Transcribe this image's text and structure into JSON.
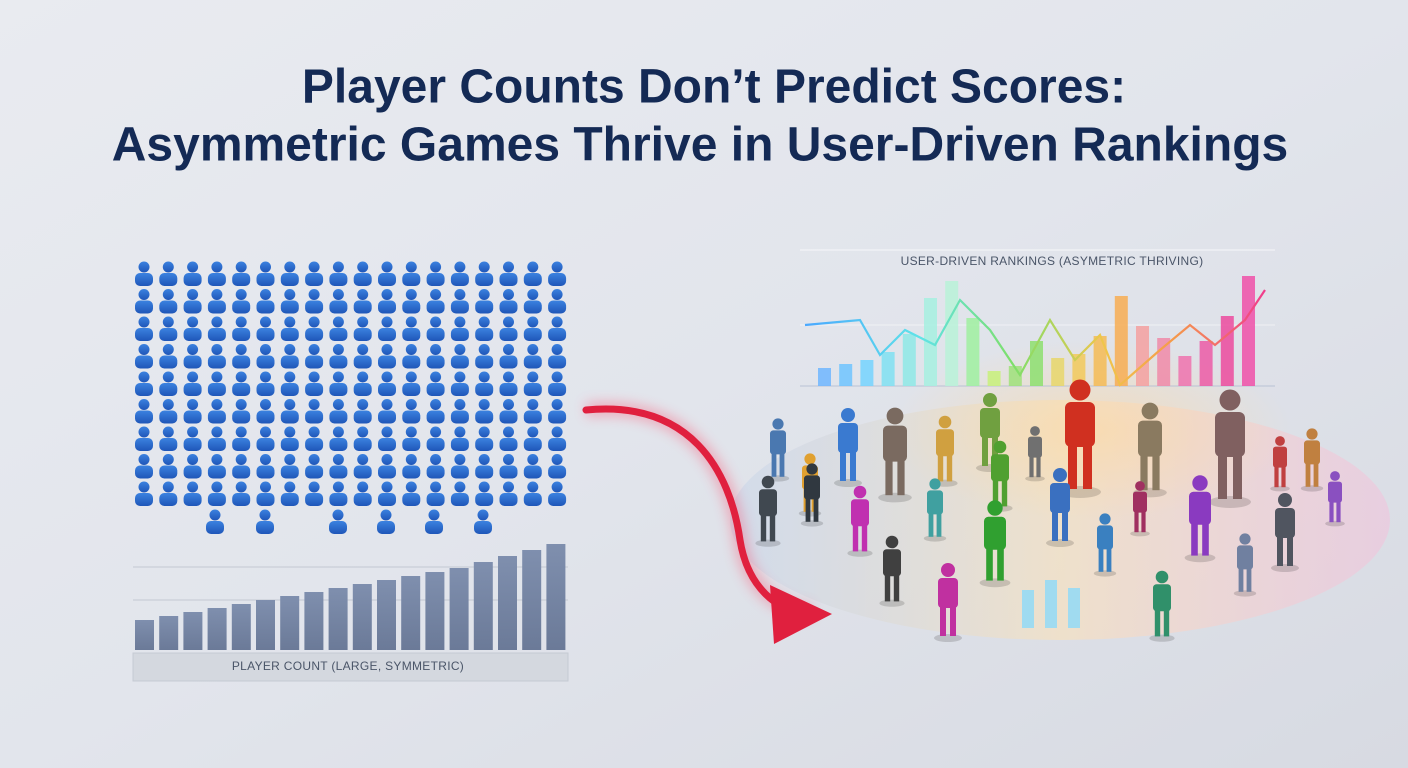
{
  "title": {
    "line1": "Player Counts Don’t Predict Scores:",
    "line2": "Asymmetric Games Thrive in User-Driven Rankings"
  },
  "left_panel": {
    "label": "PLAYER COUNT (LARGE, SYMMETRIC)"
  },
  "right_panel": {
    "label": "USER-DRIVEN RANKINGS (ASYMETRIC THRIVING)"
  }
}
